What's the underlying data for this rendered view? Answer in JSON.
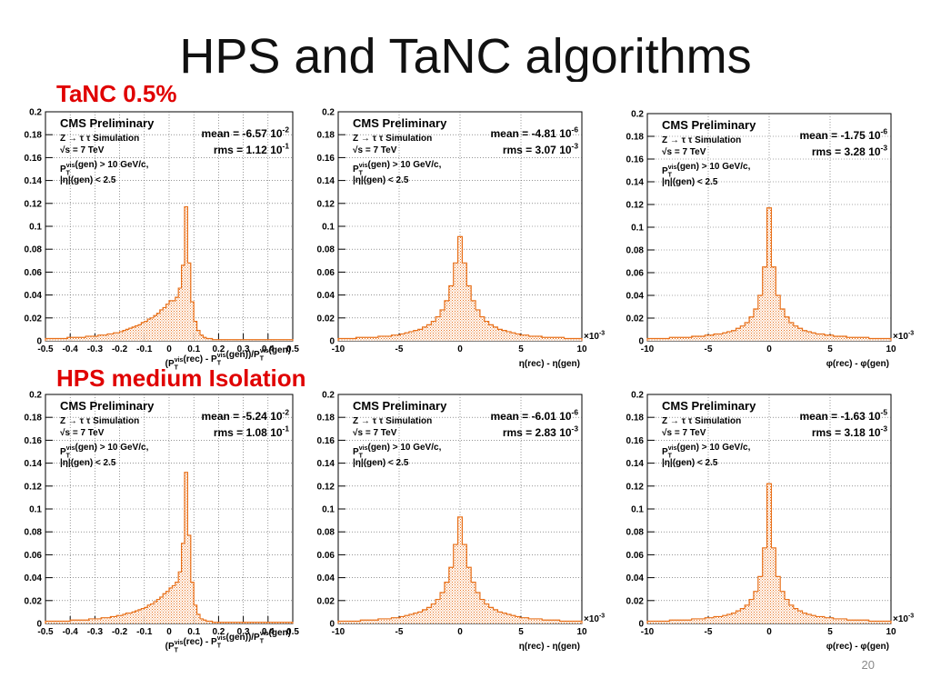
{
  "slide": {
    "title": "HPS and TaNC algorithms",
    "row_labels": [
      "TaNC 0.5%",
      "HPS medium Isolation"
    ],
    "page_number": "20"
  },
  "style": {
    "histogram_color": "#e8701a",
    "fill_color": "#f8d2b4",
    "label_color": "#e00000"
  },
  "chart_data": [
    {
      "type": "bar",
      "row": "TaNC 0.5%",
      "variable": "pt",
      "title": "CMS Preliminary",
      "annotations": [
        "Z → τ τ Simulation",
        "√s = 7 TeV",
        "P_T^vis(gen) > 10 GeV/c,",
        "|η|(gen) < 2.5"
      ],
      "stats": {
        "mean": "mean = -6.57 10^-2",
        "rms": "rms = 1.12 10^-1"
      },
      "xlabel": "(P_T^vis(rec) - P_T^vis(gen))/P_T^vis(gen)",
      "xlim": [
        -0.5,
        0.5
      ],
      "ylim": [
        0,
        0.2
      ],
      "xticks": [
        "-0.5",
        "-0.4",
        "-0.3",
        "-0.2",
        "-0.1",
        "0",
        "0.1",
        "0.2",
        "0.3",
        "0.4",
        "0.5"
      ],
      "yticks": [
        "0",
        "0.02",
        "0.04",
        "0.06",
        "0.08",
        "0.1",
        "0.12",
        "0.14",
        "0.16",
        "0.18",
        "0.2"
      ],
      "grid": true,
      "bin_edges_range": [
        -0.5,
        0.5
      ],
      "values": [
        0.002,
        0.002,
        0.002,
        0.002,
        0.002,
        0.002,
        0.002,
        0.003,
        0.003,
        0.003,
        0.003,
        0.003,
        0.003,
        0.004,
        0.004,
        0.004,
        0.004,
        0.005,
        0.005,
        0.005,
        0.006,
        0.006,
        0.007,
        0.007,
        0.008,
        0.009,
        0.01,
        0.011,
        0.012,
        0.013,
        0.014,
        0.016,
        0.017,
        0.019,
        0.02,
        0.022,
        0.024,
        0.027,
        0.029,
        0.032,
        0.035,
        0.035,
        0.038,
        0.046,
        0.066,
        0.117,
        0.068,
        0.034,
        0.017,
        0.009,
        0.005,
        0.003,
        0.002,
        0.002,
        0.001,
        0.001,
        0.001,
        0.001,
        0.001,
        0.001,
        0.001,
        0.001,
        0.001,
        0.001,
        0.001,
        0.001,
        0.001,
        0.001,
        0.001,
        0.001,
        0.001,
        0.001,
        0.001,
        0.001,
        0.001,
        0.001,
        0.001,
        0.001,
        0.001,
        0.001
      ]
    },
    {
      "type": "bar",
      "row": "TaNC 0.5%",
      "variable": "eta",
      "title": "CMS Preliminary",
      "annotations": [
        "Z → τ τ Simulation",
        "√s = 7 TeV",
        "P_T^vis(gen) > 10 GeV/c,",
        "|η|(gen) < 2.5"
      ],
      "stats": {
        "mean": "mean = -4.81 10^-6",
        "rms": "rms = 3.07 10^-3"
      },
      "xlabel": "η(rec) - η(gen)",
      "multiplier": "×10^-3",
      "xlim": [
        -10,
        10
      ],
      "ylim": [
        0,
        0.2
      ],
      "xticks": [
        "-10",
        "-5",
        "0",
        "5",
        "10"
      ],
      "yticks": [
        "0",
        "0.02",
        "0.04",
        "0.06",
        "0.08",
        "0.1",
        "0.12",
        "0.14",
        "0.16",
        "0.18",
        "0.2"
      ],
      "grid": true,
      "bin_edges_range": [
        -10,
        10
      ],
      "values": [
        0.002,
        0.002,
        0.002,
        0.002,
        0.003,
        0.003,
        0.003,
        0.003,
        0.003,
        0.004,
        0.004,
        0.004,
        0.005,
        0.005,
        0.006,
        0.007,
        0.008,
        0.009,
        0.01,
        0.012,
        0.014,
        0.017,
        0.021,
        0.027,
        0.035,
        0.048,
        0.068,
        0.091,
        0.068,
        0.048,
        0.035,
        0.027,
        0.021,
        0.017,
        0.014,
        0.012,
        0.01,
        0.009,
        0.008,
        0.007,
        0.006,
        0.005,
        0.005,
        0.004,
        0.004,
        0.004,
        0.003,
        0.003,
        0.003,
        0.003,
        0.003,
        0.002,
        0.002,
        0.002,
        0.002
      ]
    },
    {
      "type": "bar",
      "row": "TaNC 0.5%",
      "variable": "phi",
      "title": "CMS Preliminary",
      "annotations": [
        "Z → τ τ Simulation",
        "√s = 7 TeV",
        "P_T^vis(gen) > 10 GeV/c,",
        "|η|(gen) < 2.5"
      ],
      "stats": {
        "mean": "mean = -1.75 10^-6",
        "rms": "rms = 3.28 10^-3"
      },
      "xlabel": "φ(rec) - φ(gen)",
      "multiplier": "×10^-3",
      "xlim": [
        -10,
        10
      ],
      "ylim": [
        0,
        0.2
      ],
      "xticks": [
        "-10",
        "-5",
        "0",
        "5",
        "10"
      ],
      "yticks": [
        "0",
        "0.02",
        "0.04",
        "0.06",
        "0.08",
        "0.1",
        "0.12",
        "0.14",
        "0.16",
        "0.18",
        "0.2"
      ],
      "grid": true,
      "bin_edges_range": [
        -10,
        10
      ],
      "values": [
        0.002,
        0.002,
        0.002,
        0.002,
        0.002,
        0.003,
        0.003,
        0.003,
        0.003,
        0.003,
        0.004,
        0.004,
        0.004,
        0.005,
        0.005,
        0.006,
        0.006,
        0.007,
        0.008,
        0.009,
        0.011,
        0.013,
        0.016,
        0.021,
        0.028,
        0.04,
        0.065,
        0.117,
        0.065,
        0.04,
        0.028,
        0.021,
        0.016,
        0.013,
        0.011,
        0.009,
        0.008,
        0.007,
        0.006,
        0.006,
        0.005,
        0.005,
        0.004,
        0.004,
        0.004,
        0.003,
        0.003,
        0.003,
        0.003,
        0.003,
        0.002,
        0.002,
        0.002,
        0.002,
        0.002
      ]
    },
    {
      "type": "bar",
      "row": "HPS medium Isolation",
      "variable": "pt",
      "title": "CMS Preliminary",
      "annotations": [
        "Z → τ τ Simulation",
        "√s = 7 TeV",
        "P_T^vis(gen) > 10 GeV/c,",
        "|η|(gen) < 2.5"
      ],
      "stats": {
        "mean": "mean = -5.24 10^-2",
        "rms": "rms = 1.08 10^-1"
      },
      "xlabel": "(P_T^vis(rec) - P_T^vis(gen))/P_T^vis(gen)",
      "xlim": [
        -0.5,
        0.5
      ],
      "ylim": [
        0,
        0.2
      ],
      "xticks": [
        "-0.5",
        "-0.4",
        "-0.3",
        "-0.2",
        "-0.1",
        "0",
        "0.1",
        "0.2",
        "0.3",
        "0.4",
        "0.5"
      ],
      "yticks": [
        "0",
        "0.02",
        "0.04",
        "0.06",
        "0.08",
        "0.1",
        "0.12",
        "0.14",
        "0.16",
        "0.18",
        "0.2"
      ],
      "grid": true,
      "bin_edges_range": [
        -0.5,
        0.5
      ],
      "values": [
        0.002,
        0.002,
        0.002,
        0.002,
        0.002,
        0.002,
        0.002,
        0.002,
        0.003,
        0.003,
        0.003,
        0.003,
        0.003,
        0.003,
        0.004,
        0.004,
        0.004,
        0.004,
        0.005,
        0.005,
        0.005,
        0.006,
        0.006,
        0.007,
        0.007,
        0.008,
        0.009,
        0.009,
        0.01,
        0.011,
        0.012,
        0.013,
        0.014,
        0.016,
        0.017,
        0.019,
        0.021,
        0.023,
        0.026,
        0.028,
        0.031,
        0.033,
        0.036,
        0.045,
        0.07,
        0.132,
        0.077,
        0.036,
        0.016,
        0.008,
        0.004,
        0.003,
        0.002,
        0.002,
        0.001,
        0.001,
        0.001,
        0.001,
        0.001,
        0.001,
        0.001,
        0.001,
        0.001,
        0.001,
        0.001,
        0.001,
        0.001,
        0.001,
        0.001,
        0.001,
        0.001,
        0.001,
        0.001,
        0.001,
        0.001,
        0.001,
        0.001,
        0.001,
        0.001,
        0.001
      ]
    },
    {
      "type": "bar",
      "row": "HPS medium Isolation",
      "variable": "eta",
      "title": "CMS Preliminary",
      "annotations": [
        "Z → τ τ Simulation",
        "√s = 7 TeV",
        "P_T^vis(gen) > 10 GeV/c,",
        "|η|(gen) < 2.5"
      ],
      "stats": {
        "mean": "mean = -6.01 10^-6",
        "rms": "rms = 2.83 10^-3"
      },
      "xlabel": "η(rec) - η(gen)",
      "multiplier": "×10^-3",
      "xlim": [
        -10,
        10
      ],
      "ylim": [
        0,
        0.2
      ],
      "xticks": [
        "-10",
        "-5",
        "0",
        "5",
        "10"
      ],
      "yticks": [
        "0",
        "0.02",
        "0.04",
        "0.06",
        "0.08",
        "0.1",
        "0.12",
        "0.14",
        "0.16",
        "0.18",
        "0.2"
      ],
      "grid": true,
      "bin_edges_range": [
        -10,
        10
      ],
      "values": [
        0.002,
        0.002,
        0.002,
        0.002,
        0.002,
        0.003,
        0.003,
        0.003,
        0.003,
        0.004,
        0.004,
        0.004,
        0.005,
        0.005,
        0.006,
        0.007,
        0.008,
        0.009,
        0.01,
        0.012,
        0.014,
        0.017,
        0.021,
        0.027,
        0.036,
        0.049,
        0.069,
        0.093,
        0.069,
        0.049,
        0.036,
        0.027,
        0.021,
        0.017,
        0.014,
        0.012,
        0.01,
        0.009,
        0.008,
        0.007,
        0.006,
        0.005,
        0.005,
        0.004,
        0.004,
        0.004,
        0.003,
        0.003,
        0.003,
        0.003,
        0.002,
        0.002,
        0.002,
        0.002,
        0.002
      ]
    },
    {
      "type": "bar",
      "row": "HPS medium Isolation",
      "variable": "phi",
      "title": "CMS Preliminary",
      "annotations": [
        "Z → τ τ Simulation",
        "√s = 7 TeV",
        "P_T^vis(gen) > 10 GeV/c,",
        "|η|(gen) < 2.5"
      ],
      "stats": {
        "mean": "mean = -1.63 10^-5",
        "rms": "rms = 3.18 10^-3"
      },
      "xlabel": "φ(rec) - φ(gen)",
      "multiplier": "×10^-3",
      "xlim": [
        -10,
        10
      ],
      "ylim": [
        0,
        0.2
      ],
      "xticks": [
        "-10",
        "-5",
        "0",
        "5",
        "10"
      ],
      "yticks": [
        "0",
        "0.02",
        "0.04",
        "0.06",
        "0.08",
        "0.1",
        "0.12",
        "0.14",
        "0.16",
        "0.18",
        "0.2"
      ],
      "grid": true,
      "bin_edges_range": [
        -10,
        10
      ],
      "values": [
        0.002,
        0.002,
        0.002,
        0.002,
        0.002,
        0.003,
        0.003,
        0.003,
        0.003,
        0.003,
        0.004,
        0.004,
        0.004,
        0.005,
        0.005,
        0.006,
        0.006,
        0.007,
        0.008,
        0.009,
        0.011,
        0.013,
        0.016,
        0.021,
        0.028,
        0.041,
        0.066,
        0.122,
        0.066,
        0.041,
        0.028,
        0.021,
        0.016,
        0.013,
        0.011,
        0.009,
        0.008,
        0.007,
        0.006,
        0.006,
        0.005,
        0.005,
        0.004,
        0.004,
        0.004,
        0.003,
        0.003,
        0.003,
        0.003,
        0.003,
        0.002,
        0.002,
        0.002,
        0.002,
        0.002
      ]
    }
  ]
}
